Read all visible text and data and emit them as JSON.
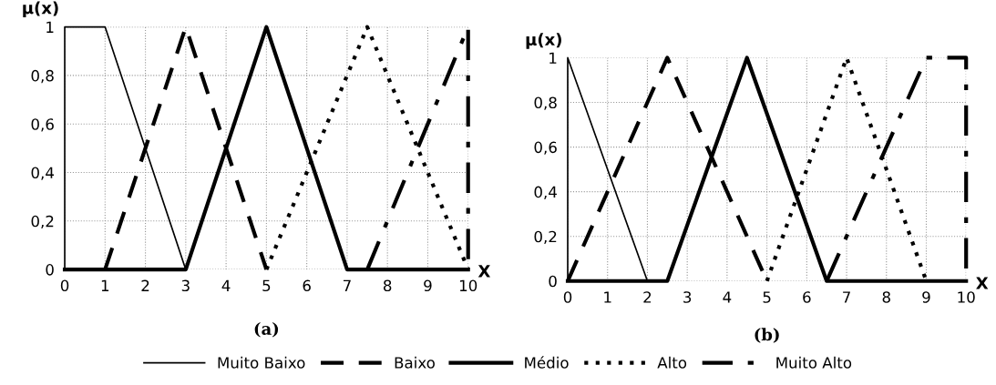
{
  "chart_data": [
    {
      "type": "line",
      "title": "(a)",
      "xlabel": "X",
      "ylabel": "μ(x)",
      "xlim": [
        0,
        10
      ],
      "ylim": [
        0,
        1
      ],
      "xticks": [
        0,
        1,
        2,
        3,
        4,
        5,
        6,
        7,
        8,
        9,
        10
      ],
      "yticks": [
        {
          "value": 0,
          "label": "0"
        },
        {
          "value": 0.2,
          "label": "0,2"
        },
        {
          "value": 0.4,
          "label": "0,4"
        },
        {
          "value": 0.6,
          "label": "0,6"
        },
        {
          "value": 0.8,
          "label": "0,8"
        },
        {
          "value": 1,
          "label": "1"
        }
      ],
      "grid": true,
      "legend": "bottom",
      "marker": "none",
      "series": [
        {
          "name": "Muito Baixo",
          "color": "#000000",
          "line_style": "solid",
          "x": [
            0,
            0,
            1,
            3
          ],
          "values": [
            0,
            1,
            1,
            0
          ]
        },
        {
          "name": "Baixo",
          "color": "#000000",
          "line_style": "dashed",
          "x": [
            1,
            3,
            5
          ],
          "values": [
            0,
            1,
            0
          ]
        },
        {
          "name": "Médio",
          "color": "#000000",
          "line_style": "solid",
          "x": [
            0,
            3,
            5,
            7,
            10
          ],
          "values": [
            0,
            0,
            1,
            0,
            0
          ]
        },
        {
          "name": "Alto",
          "color": "#000000",
          "line_style": "dotted",
          "x": [
            5,
            7.5,
            10
          ],
          "values": [
            0,
            1,
            0
          ]
        },
        {
          "name": "Muito Alto",
          "color": "#000000",
          "line_style": "dashdot",
          "x": [
            7.5,
            10,
            10
          ],
          "values": [
            0,
            1,
            0
          ]
        }
      ]
    },
    {
      "type": "line",
      "title": "(b)",
      "xlabel": "X",
      "ylabel": "μ(x)",
      "xlim": [
        0,
        10
      ],
      "ylim": [
        0,
        1
      ],
      "xticks": [
        0,
        1,
        2,
        3,
        4,
        5,
        6,
        7,
        8,
        9,
        10
      ],
      "yticks": [
        {
          "value": 0,
          "label": "0"
        },
        {
          "value": 0.2,
          "label": "0,2"
        },
        {
          "value": 0.4,
          "label": "0,4"
        },
        {
          "value": 0.6,
          "label": "0,6"
        },
        {
          "value": 0.8,
          "label": "0,8"
        },
        {
          "value": 1,
          "label": "1"
        }
      ],
      "grid": true,
      "legend": "bottom",
      "marker": "none",
      "series": [
        {
          "name": "Muito Baixo",
          "color": "#000000",
          "line_style": "solid",
          "x": [
            0,
            0,
            2
          ],
          "values": [
            0,
            1,
            0
          ]
        },
        {
          "name": "Baixo",
          "color": "#000000",
          "line_style": "dashed",
          "x": [
            0,
            2.5,
            5
          ],
          "values": [
            0,
            1,
            0
          ]
        },
        {
          "name": "Médio",
          "color": "#000000",
          "line_style": "solid",
          "x": [
            0,
            2.5,
            4.5,
            6.5,
            10
          ],
          "values": [
            0,
            0,
            1,
            0,
            0
          ]
        },
        {
          "name": "Alto",
          "color": "#000000",
          "line_style": "dotted",
          "x": [
            5,
            7,
            9
          ],
          "values": [
            0,
            1,
            0
          ]
        },
        {
          "name": "Muito Alto",
          "color": "#000000",
          "line_style": "dashdot",
          "x": [
            6.5,
            9,
            10,
            10
          ],
          "values": [
            0,
            1,
            1,
            0
          ]
        }
      ]
    }
  ]
}
